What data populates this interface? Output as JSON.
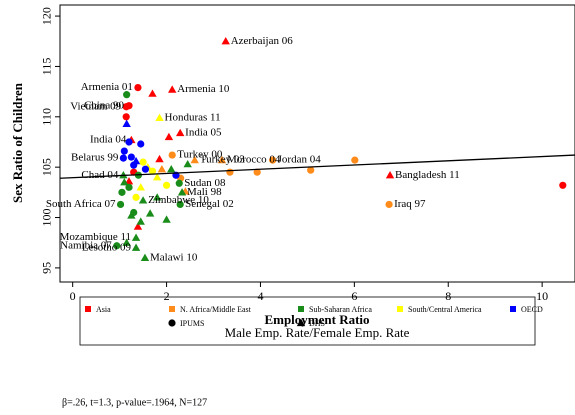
{
  "chart_data": {
    "type": "scatter",
    "ylabel": "Sex Ratio of Children",
    "xlabel": "Employment Ratio",
    "xlabel_sub": "Male Emp. Rate/Female Emp. Rate",
    "note": "β=.26, t=1.3, p-value=.1964, N=127",
    "xlim": [
      -0.27,
      10.7
    ],
    "ylim": [
      93.6,
      121.1
    ],
    "xticks": [
      0,
      2,
      4,
      6,
      8,
      10
    ],
    "yticks": [
      95,
      100,
      105,
      110,
      115,
      120
    ],
    "fit": {
      "x": [
        -0.27,
        10.7
      ],
      "values": [
        103.9,
        106.2
      ],
      "color": "#000000"
    },
    "marker_legend": [
      {
        "name": "IPUMS",
        "marker": "circle"
      },
      {
        "name": "DHS",
        "marker": "triangle"
      }
    ],
    "series": [
      {
        "name": "Asia",
        "color": "#ff0000",
        "x": [
          1.39,
          1.14,
          1.2,
          1.14,
          10.44,
          1.3,
          3.26,
          2.12,
          1.25,
          2.29,
          6.76,
          1.7,
          2.05,
          1.85,
          1.39,
          1.2
        ],
        "values": [
          112.9,
          111.0,
          111.1,
          110.0,
          103.2,
          104.5,
          117.5,
          112.7,
          107.7,
          108.4,
          104.2,
          112.3,
          108.0,
          105.8,
          99.1,
          103.6
        ],
        "markers": [
          "circle",
          "circle",
          "circle",
          "circle",
          "circle",
          "circle",
          "triangle",
          "triangle",
          "triangle",
          "triangle",
          "triangle",
          "triangle",
          "triangle",
          "triangle",
          "triangle",
          "triangle"
        ],
        "labels": [
          "Armenia 01",
          "Vietnam 09",
          "China 90",
          null,
          null,
          null,
          "Azerbaijan 06",
          "Armenia 10",
          "India 04",
          "India 05",
          "Bangladesh 11",
          null,
          null,
          null,
          null,
          null
        ]
      },
      {
        "name": "N. Africa/Middle East",
        "color": "#ff8c1a",
        "x": [
          2.12,
          4.26,
          6.74,
          6.01,
          5.07,
          3.93,
          3.35,
          2.3,
          2.6,
          3.18,
          1.9,
          2.4
        ],
        "values": [
          106.2,
          105.7,
          101.3,
          105.7,
          104.7,
          104.5,
          104.5,
          103.9,
          105.7,
          105.7,
          104.8,
          102.6
        ],
        "markers": [
          "circle",
          "circle",
          "circle",
          "circle",
          "circle",
          "circle",
          "circle",
          "circle",
          "triangle",
          "triangle",
          "triangle",
          "triangle"
        ],
        "labels": [
          "Turkey 00",
          "Jordan 04",
          "Iraq 97",
          null,
          null,
          null,
          null,
          null,
          "Turkey 03",
          "Morocco 04",
          null,
          null
        ]
      },
      {
        "name": "Sub-Saharan Africa",
        "color": "#1a8c1a",
        "x": [
          1.02,
          0.94,
          2.29,
          2.27,
          1.15,
          1.2,
          1.3,
          1.05,
          1.4,
          1.08,
          2.33,
          1.5,
          1.35,
          1.35,
          1.54,
          1.1,
          1.25,
          1.45,
          1.65,
          2.0,
          2.45,
          1.8,
          1.15,
          2.1
        ],
        "values": [
          101.3,
          97.2,
          101.3,
          103.4,
          112.2,
          103.0,
          100.5,
          102.5,
          104.2,
          104.2,
          102.5,
          101.7,
          98.0,
          97.0,
          96.0,
          103.5,
          100.2,
          99.6,
          100.4,
          99.8,
          105.3,
          102.0,
          97.5,
          104.8
        ],
        "markers": [
          "circle",
          "circle",
          "circle",
          "circle",
          "circle",
          "circle",
          "circle",
          "circle",
          "circle",
          "triangle",
          "triangle",
          "triangle",
          "triangle",
          "triangle",
          "triangle",
          "triangle",
          "triangle",
          "triangle",
          "triangle",
          "triangle",
          "triangle",
          "triangle",
          "triangle",
          "triangle"
        ],
        "labels": [
          "South Africa 07",
          "Namibia 07",
          "Senegal 02",
          "Sudan 08",
          null,
          null,
          null,
          null,
          null,
          "Chad 04",
          "Mali 98",
          "Zimbabwe 10",
          "Mozambique 11",
          "Lesotho 09",
          "Malawi 10",
          null,
          null,
          null,
          null,
          null,
          null,
          null,
          null,
          null
        ]
      },
      {
        "name": "South/Central America",
        "color": "#ffff00",
        "x": [
          1.85,
          1.6,
          1.8,
          1.45,
          1.5,
          1.7,
          2.0,
          1.35
        ],
        "values": [
          109.9,
          105.0,
          104.0,
          103.0,
          105.5,
          104.6,
          103.2,
          102.0
        ],
        "markers": [
          "triangle",
          "triangle",
          "triangle",
          "triangle",
          "circle",
          "circle",
          "circle",
          "circle"
        ],
        "labels": [
          "Honduras 11",
          null,
          null,
          null,
          null,
          null,
          null,
          null
        ]
      },
      {
        "name": "OECD",
        "color": "#0000ff",
        "x": [
          1.08,
          1.2,
          1.25,
          1.45,
          1.3,
          1.1,
          1.55,
          2.2,
          1.15,
          1.35
        ],
        "values": [
          105.9,
          107.5,
          106.0,
          107.3,
          105.2,
          106.6,
          104.8,
          104.2,
          109.3,
          105.6
        ],
        "markers": [
          "circle",
          "circle",
          "circle",
          "circle",
          "circle",
          "circle",
          "circle",
          "circle",
          "triangle",
          "triangle"
        ],
        "labels": [
          "Belarus 99",
          null,
          null,
          null,
          null,
          null,
          null,
          null,
          null,
          null
        ]
      }
    ]
  }
}
